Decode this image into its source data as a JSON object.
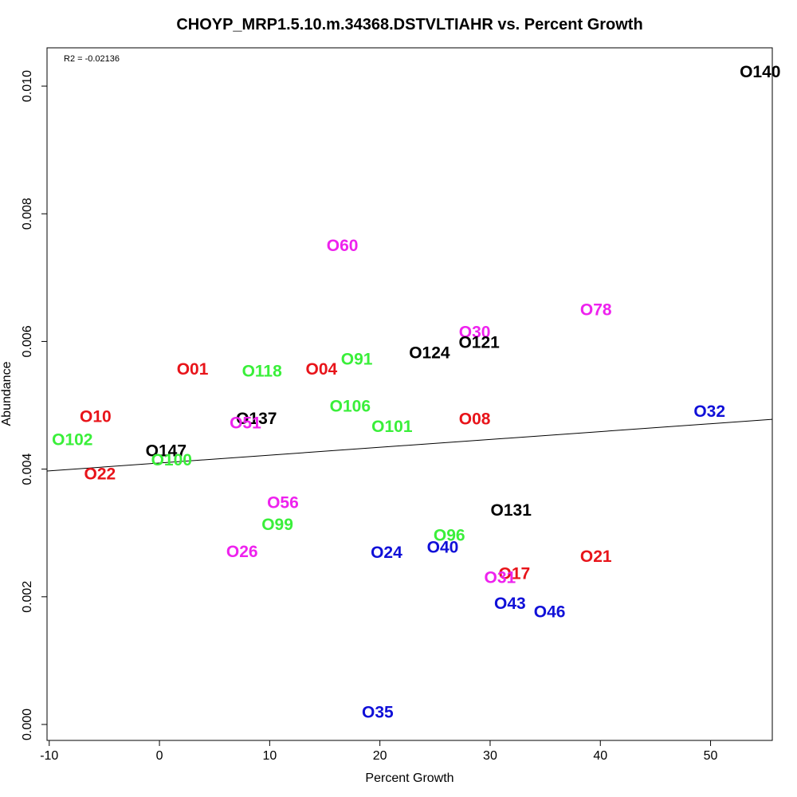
{
  "chart_data": {
    "type": "scatter",
    "title": "CHOYP_MRP1.5.10.m.34368.DSTVLTIAHR vs. Percent Growth",
    "xlabel": "Percent Growth",
    "ylabel": "Abundance",
    "annotation": "R2 = -0.02136",
    "xlim": [
      -10.2,
      55.6
    ],
    "ylim": [
      -0.00025,
      0.0106
    ],
    "x_ticks": [
      -10,
      0,
      10,
      20,
      30,
      40,
      50
    ],
    "y_ticks": [
      0.0,
      0.002,
      0.004,
      0.006,
      0.008,
      0.01
    ],
    "x_tick_labels": [
      "-10",
      "0",
      "10",
      "20",
      "30",
      "40",
      "50"
    ],
    "y_tick_labels": [
      "0.000",
      "0.002",
      "0.004",
      "0.006",
      "0.008",
      "0.010"
    ],
    "fit_line": {
      "x": [
        -10.2,
        55.6
      ],
      "y": [
        0.00397,
        0.00478
      ]
    },
    "colors": {
      "red": "#e8141a",
      "green": "#3aef3a",
      "blue": "#1010d8",
      "magenta": "#ee22ee",
      "black": "#000000"
    },
    "points": [
      {
        "label": "O140",
        "x": 54.5,
        "y": 0.01022,
        "color": "black"
      },
      {
        "label": "O60",
        "x": 16.6,
        "y": 0.0075,
        "color": "magenta"
      },
      {
        "label": "O78",
        "x": 39.6,
        "y": 0.00649,
        "color": "magenta"
      },
      {
        "label": "O30",
        "x": 28.6,
        "y": 0.00614,
        "color": "magenta"
      },
      {
        "label": "O121",
        "x": 29.0,
        "y": 0.00598,
        "color": "black"
      },
      {
        "label": "O124",
        "x": 24.5,
        "y": 0.00582,
        "color": "black"
      },
      {
        "label": "O91",
        "x": 17.9,
        "y": 0.00572,
        "color": "green"
      },
      {
        "label": "O01",
        "x": 3.0,
        "y": 0.00556,
        "color": "red"
      },
      {
        "label": "O118",
        "x": 9.3,
        "y": 0.00553,
        "color": "green"
      },
      {
        "label": "O04",
        "x": 14.7,
        "y": 0.00556,
        "color": "red"
      },
      {
        "label": "O106",
        "x": 17.3,
        "y": 0.00498,
        "color": "green"
      },
      {
        "label": "O32",
        "x": 49.9,
        "y": 0.0049,
        "color": "blue"
      },
      {
        "label": "O10",
        "x": -5.8,
        "y": 0.00482,
        "color": "red"
      },
      {
        "label": "O137",
        "x": 8.8,
        "y": 0.00479,
        "color": "black"
      },
      {
        "label": "O08",
        "x": 28.6,
        "y": 0.00478,
        "color": "red"
      },
      {
        "label": "O51",
        "x": 7.8,
        "y": 0.00472,
        "color": "magenta"
      },
      {
        "label": "O101",
        "x": 21.1,
        "y": 0.00466,
        "color": "green"
      },
      {
        "label": "O102",
        "x": -7.9,
        "y": 0.00446,
        "color": "green"
      },
      {
        "label": "O147",
        "x": 0.6,
        "y": 0.00428,
        "color": "black"
      },
      {
        "label": "O100",
        "x": 1.1,
        "y": 0.00414,
        "color": "green"
      },
      {
        "label": "O22",
        "x": -5.4,
        "y": 0.00392,
        "color": "red"
      },
      {
        "label": "O56",
        "x": 11.2,
        "y": 0.00347,
        "color": "magenta"
      },
      {
        "label": "O131",
        "x": 31.9,
        "y": 0.00335,
        "color": "black"
      },
      {
        "label": "O99",
        "x": 10.7,
        "y": 0.00313,
        "color": "green"
      },
      {
        "label": "O96",
        "x": 26.3,
        "y": 0.00296,
        "color": "green"
      },
      {
        "label": "O40",
        "x": 25.7,
        "y": 0.00277,
        "color": "blue"
      },
      {
        "label": "O26",
        "x": 7.5,
        "y": 0.0027,
        "color": "magenta"
      },
      {
        "label": "O24",
        "x": 20.6,
        "y": 0.00269,
        "color": "blue"
      },
      {
        "label": "O21",
        "x": 39.6,
        "y": 0.00263,
        "color": "red"
      },
      {
        "label": "O17",
        "x": 32.2,
        "y": 0.00236,
        "color": "red"
      },
      {
        "label": "O31",
        "x": 30.9,
        "y": 0.0023,
        "color": "magenta"
      },
      {
        "label": "O43",
        "x": 31.8,
        "y": 0.00189,
        "color": "blue"
      },
      {
        "label": "O46",
        "x": 35.4,
        "y": 0.00176,
        "color": "blue"
      },
      {
        "label": "O35",
        "x": 19.8,
        "y": 0.00019,
        "color": "blue"
      }
    ]
  }
}
